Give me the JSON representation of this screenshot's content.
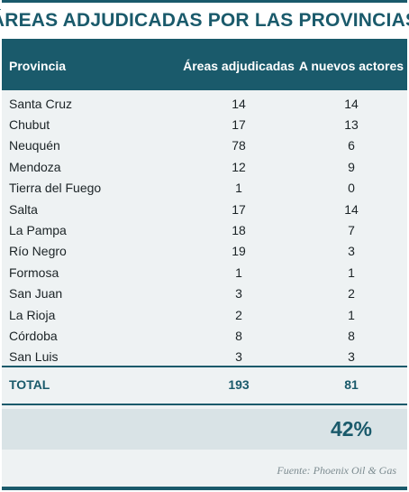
{
  "title": "ÁREAS ADJUDICADAS POR LAS PROVINCIAS",
  "chart_data": {
    "type": "table",
    "columns": [
      "Provincia",
      "Áreas adjudicadas",
      "A nuevos actores"
    ],
    "rows": [
      {
        "provincia": "Santa Cruz",
        "areas": "14",
        "nuevos": "14"
      },
      {
        "provincia": "Chubut",
        "areas": "17",
        "nuevos": "13"
      },
      {
        "provincia": "Neuquén",
        "areas": "78",
        "nuevos": "6"
      },
      {
        "provincia": "Mendoza",
        "areas": "12",
        "nuevos": "9"
      },
      {
        "provincia": "Tierra del Fuego",
        "areas": "1",
        "nuevos": "0"
      },
      {
        "provincia": "Salta",
        "areas": "17",
        "nuevos": "14"
      },
      {
        "provincia": "La Pampa",
        "areas": "18",
        "nuevos": "7"
      },
      {
        "provincia": "Río Negro",
        "areas": "19",
        "nuevos": "3"
      },
      {
        "provincia": "Formosa",
        "areas": "1",
        "nuevos": "1"
      },
      {
        "provincia": "San Juan",
        "areas": "3",
        "nuevos": "2"
      },
      {
        "provincia": "La Rioja",
        "areas": "2",
        "nuevos": "1"
      },
      {
        "provincia": "Córdoba",
        "areas": "8",
        "nuevos": "8"
      },
      {
        "provincia": "San Luis",
        "areas": "3",
        "nuevos": "3"
      }
    ],
    "total": {
      "label": "TOTAL",
      "areas": "193",
      "nuevos": "81"
    },
    "percentage": "42%",
    "source": "Fuente: Phoenix Oil & Gas"
  },
  "colors": {
    "accent": "#1a5a6b",
    "band": "#d9e3e6",
    "background": "#eef2f3"
  }
}
